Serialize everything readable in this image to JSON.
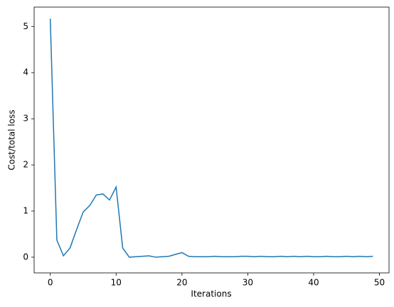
{
  "chart_data": {
    "type": "line",
    "xlabel": "Iterations",
    "ylabel": "Cost/total loss",
    "x": [
      0,
      1,
      2,
      3,
      4,
      5,
      6,
      7,
      8,
      9,
      10,
      11,
      12,
      13,
      14,
      15,
      16,
      17,
      18,
      19,
      20,
      21,
      22,
      23,
      24,
      25,
      26,
      27,
      28,
      29,
      30,
      31,
      32,
      33,
      34,
      35,
      36,
      37,
      38,
      39,
      40,
      41,
      42,
      43,
      44,
      45,
      46,
      47,
      48,
      49
    ],
    "series": [
      {
        "color": "#1f77b4",
        "values": [
          5.17,
          0.37,
          0.03,
          0.2,
          0.6,
          0.98,
          1.12,
          1.35,
          1.37,
          1.24,
          1.52,
          0.2,
          0.0,
          0.01,
          0.02,
          0.03,
          0.0,
          0.01,
          0.02,
          0.06,
          0.1,
          0.02,
          0.01,
          0.01,
          0.01,
          0.02,
          0.01,
          0.01,
          0.01,
          0.02,
          0.02,
          0.01,
          0.02,
          0.01,
          0.01,
          0.02,
          0.01,
          0.02,
          0.01,
          0.02,
          0.01,
          0.01,
          0.02,
          0.01,
          0.01,
          0.02,
          0.01,
          0.02,
          0.01,
          0.02
        ]
      }
    ],
    "xlim": [
      -2.45,
      51.45
    ],
    "xticks": [
      0,
      10,
      20,
      30,
      40,
      50
    ],
    "ylim": [
      -0.34,
      5.42
    ],
    "yticks": [
      0,
      1,
      2,
      3,
      4,
      5
    ]
  }
}
